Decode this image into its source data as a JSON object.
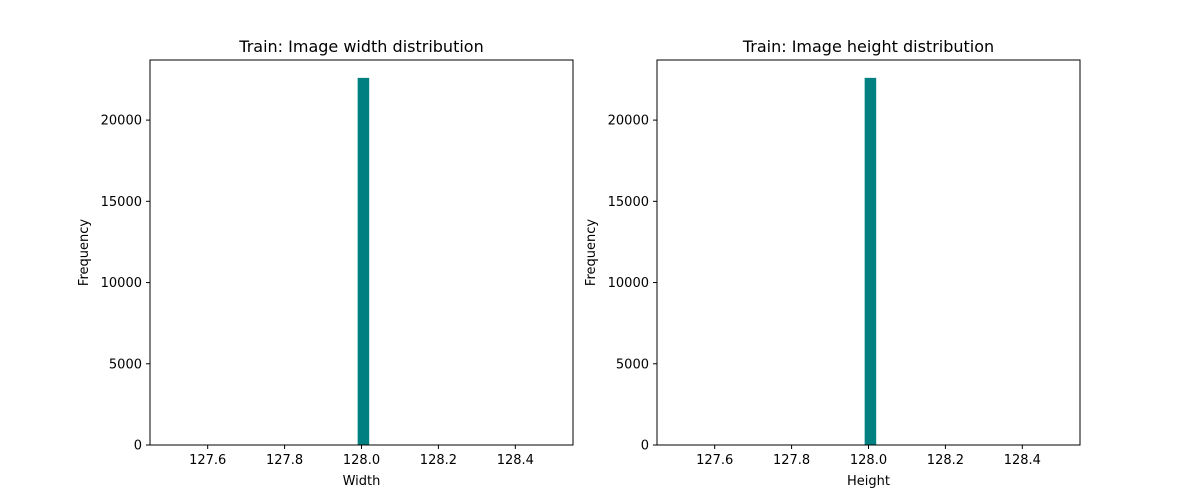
{
  "chart_data": [
    {
      "type": "bar",
      "title": "Train: Image width distribution",
      "xlabel": "Width",
      "ylabel": "Frequency",
      "xlim": [
        127.45,
        128.55
      ],
      "ylim": [
        0,
        23700
      ],
      "xticks": [
        127.6,
        127.8,
        128.0,
        128.2,
        128.4
      ],
      "xtick_labels": [
        "127.6",
        "127.8",
        "128.0",
        "128.2",
        "128.4"
      ],
      "yticks": [
        0,
        5000,
        10000,
        15000,
        20000
      ],
      "ytick_labels": [
        "0",
        "5000",
        "10000",
        "15000",
        "20000"
      ],
      "bins": [
        {
          "x0": 127.99,
          "x1": 128.02,
          "value": 22600
        }
      ],
      "color": "#008080",
      "grid": false
    },
    {
      "type": "bar",
      "title": "Train: Image height distribution",
      "xlabel": "Height",
      "ylabel": "Frequency",
      "xlim": [
        127.45,
        128.55
      ],
      "ylim": [
        0,
        23700
      ],
      "xticks": [
        127.6,
        127.8,
        128.0,
        128.2,
        128.4
      ],
      "xtick_labels": [
        "127.6",
        "127.8",
        "128.0",
        "128.2",
        "128.4"
      ],
      "yticks": [
        0,
        5000,
        10000,
        15000,
        20000
      ],
      "ytick_labels": [
        "0",
        "5000",
        "10000",
        "15000",
        "20000"
      ],
      "bins": [
        {
          "x0": 127.99,
          "x1": 128.02,
          "value": 22600
        }
      ],
      "color": "#008080",
      "grid": false
    }
  ]
}
